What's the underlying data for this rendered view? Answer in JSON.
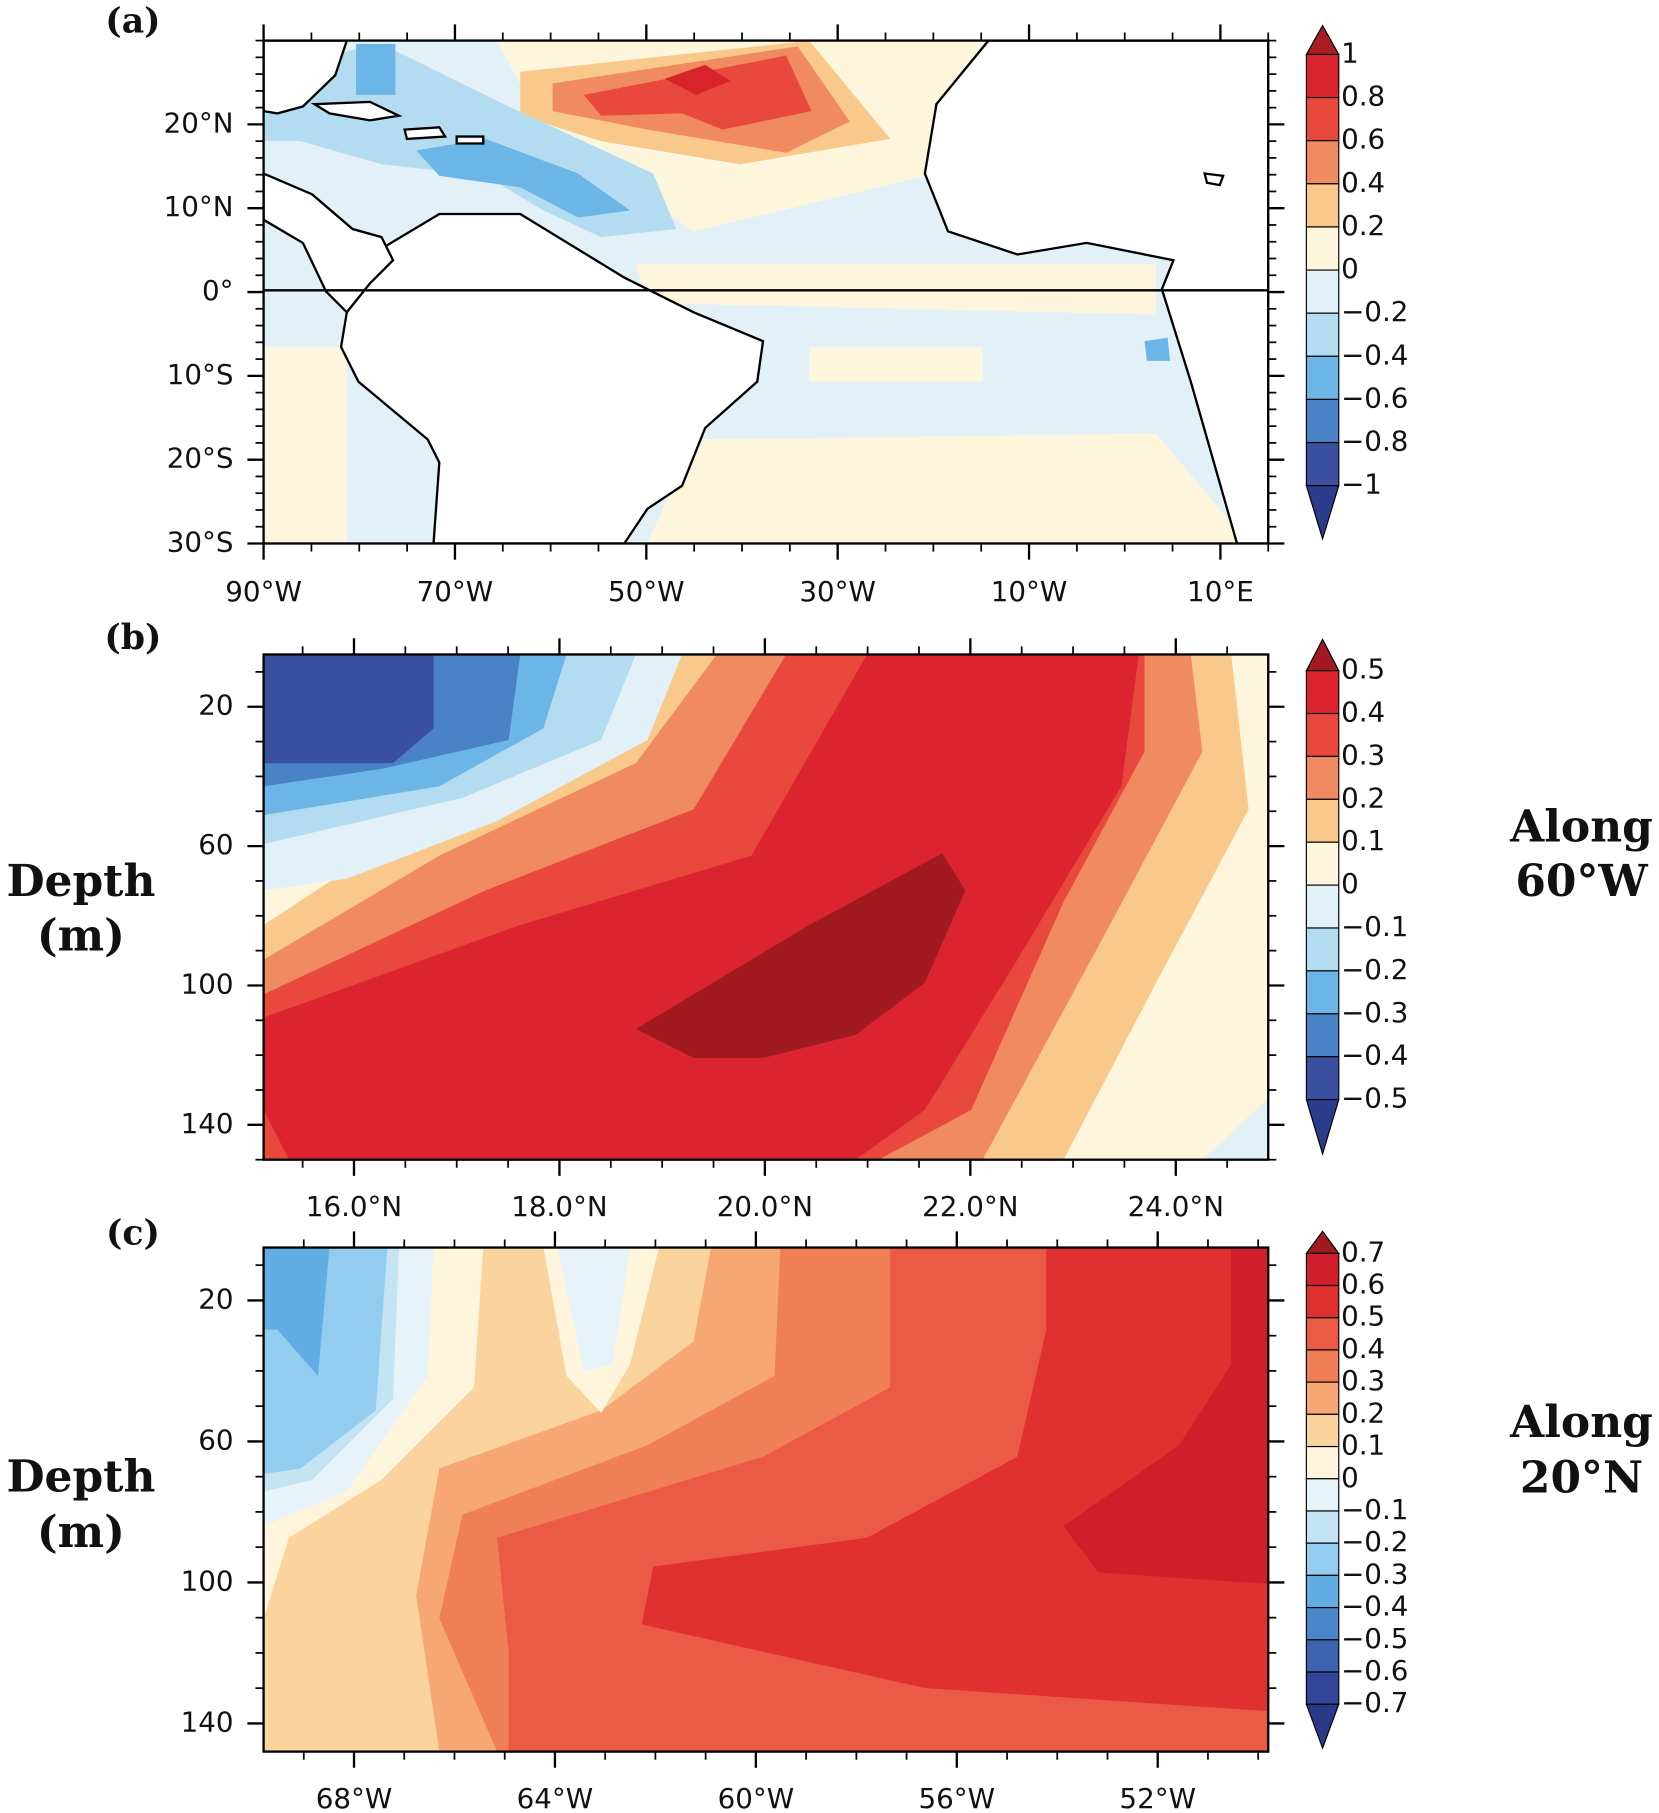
{
  "chart_data": [
    {
      "type": "contour",
      "title": "(a)",
      "xlim": [
        -90,
        15
      ],
      "ylim": [
        -30,
        30
      ],
      "xticks": [
        {
          "value": -90,
          "label": "90°W"
        },
        {
          "value": -70,
          "label": "70°W"
        },
        {
          "value": -50,
          "label": "50°W"
        },
        {
          "value": -30,
          "label": "30°W"
        },
        {
          "value": -10,
          "label": "10°W"
        },
        {
          "value": 10,
          "label": "10°E"
        }
      ],
      "yticks": [
        {
          "value": -30,
          "label": "30°S"
        },
        {
          "value": -20,
          "label": "20°S"
        },
        {
          "value": -10,
          "label": "10°S"
        },
        {
          "value": 0,
          "label": "0°"
        },
        {
          "value": 10,
          "label": "10°N"
        },
        {
          "value": 20,
          "label": "20°N"
        }
      ],
      "levels": [
        1,
        0.8,
        0.6,
        0.4,
        0.2,
        0,
        {
          "value": -0.2,
          "label": "−0.2"
        },
        {
          "value": -0.4,
          "label": "−0.4"
        },
        {
          "value": -0.6,
          "label": "−0.6"
        },
        {
          "value": -0.8,
          "label": "−0.8"
        },
        {
          "value": -1,
          "label": "−1"
        }
      ],
      "colors": [
        "#a81e22",
        "#d8232d",
        "#e8493c",
        "#f08a60",
        "#f9c98c",
        "#fdf6dc",
        "#e2f1f8",
        "#b4dcf1",
        "#6bb6e6",
        "#4a82c6",
        "#3a4fa0",
        "#2c3c8c"
      ]
    },
    {
      "type": "contour",
      "title": "(b)",
      "y_label": [
        "Depth",
        "(m)"
      ],
      "side_label": [
        "Along",
        "60°W"
      ],
      "xlim": [
        15.12,
        24.9
      ],
      "ylim": [
        150,
        5
      ],
      "xticks": [
        {
          "value": 16,
          "label": "16.0°N"
        },
        {
          "value": 18,
          "label": "18.0°N"
        },
        {
          "value": 20,
          "label": "20.0°N"
        },
        {
          "value": 22,
          "label": "22.0°N"
        },
        {
          "value": 24,
          "label": "24.0°N"
        }
      ],
      "yticks": [
        20,
        60,
        100,
        140
      ],
      "levels": [
        0.5,
        0.4,
        0.3,
        0.2,
        0.1,
        0,
        {
          "value": -0.1,
          "label": "−0.1"
        },
        {
          "value": -0.2,
          "label": "−0.2"
        },
        {
          "value": -0.3,
          "label": "−0.3"
        },
        {
          "value": -0.4,
          "label": "−0.4"
        },
        {
          "value": -0.5,
          "label": "−0.5"
        }
      ],
      "colors": [
        "#a01a20",
        "#dc2430",
        "#e8493c",
        "#f08a60",
        "#f9c98c",
        "#fdf6dc",
        "#e2f1f8",
        "#b4dcf1",
        "#6bb6e6",
        "#4a82c6",
        "#3a4fa0",
        "#2c3c8c"
      ]
    },
    {
      "type": "contour",
      "title": "(c)",
      "y_label": [
        "Depth",
        "(m)"
      ],
      "side_label": [
        "Along",
        "20°N"
      ],
      "xlim": [
        -69.8,
        -49.8
      ],
      "ylim": [
        148,
        5
      ],
      "xticks": [
        {
          "value": -68,
          "label": "68°W"
        },
        {
          "value": -64,
          "label": "64°W"
        },
        {
          "value": -60,
          "label": "60°W"
        },
        {
          "value": -56,
          "label": "56°W"
        },
        {
          "value": -52,
          "label": "52°W"
        }
      ],
      "yticks": [
        20,
        60,
        100,
        140
      ],
      "levels": [
        0.7,
        0.6,
        0.5,
        0.4,
        0.3,
        0.2,
        0.1,
        0,
        {
          "value": -0.1,
          "label": "−0.1"
        },
        {
          "value": -0.2,
          "label": "−0.2"
        },
        {
          "value": -0.3,
          "label": "−0.3"
        },
        {
          "value": -0.4,
          "label": "−0.4"
        },
        {
          "value": -0.5,
          "label": "−0.5"
        },
        {
          "value": -0.6,
          "label": "−0.6"
        },
        {
          "value": -0.7,
          "label": "−0.7"
        }
      ],
      "colors": [
        "#a01a20",
        "#d01f2a",
        "#e0302f",
        "#ea5a44",
        "#f07f58",
        "#f6a774",
        "#fbd39c",
        "#fef5dc",
        "#e6f3f9",
        "#c4e3f3",
        "#92ccee",
        "#62ade4",
        "#4a86c8",
        "#3d62ae",
        "#33469a",
        "#2a3888"
      ]
    }
  ]
}
